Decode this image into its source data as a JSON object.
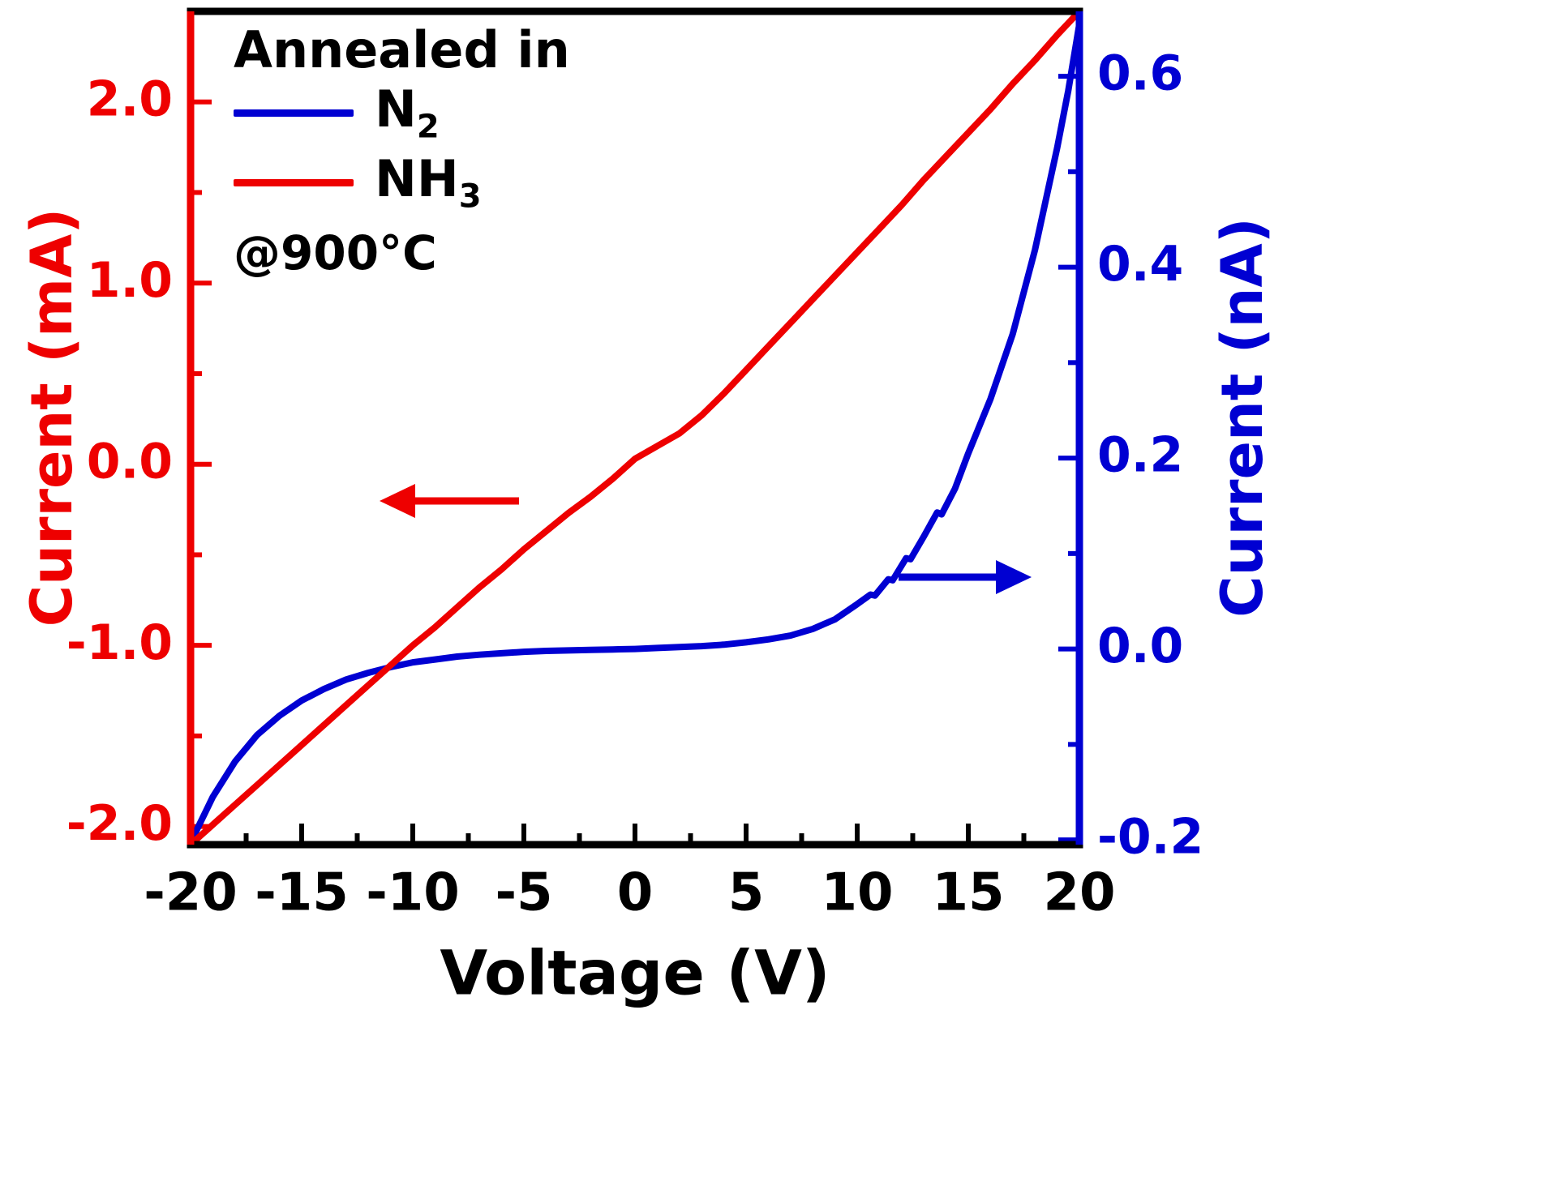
{
  "chart_data": {
    "type": "line",
    "title": "",
    "xlabel": "Voltage (V)",
    "ylabel_left": "Current (mA)",
    "ylabel_right": "Current (nA)",
    "xlim": [
      -20,
      20
    ],
    "ylim_left": [
      -2.1,
      2.5
    ],
    "ylim_right": [
      -0.205,
      0.668
    ],
    "x_tick_values": [
      -20,
      -15,
      -10,
      -5,
      0,
      5,
      10,
      15,
      20
    ],
    "x_tick_labels": [
      "-20",
      "-15",
      "-10",
      "-5",
      "0",
      "5",
      "10",
      "15",
      "20"
    ],
    "y_tick_values_left": [
      2.0,
      1.0,
      0.0,
      -1.0,
      -2.0
    ],
    "y_tick_labels_left": [
      "2.0",
      "1.0",
      "0.0",
      "-1.0",
      "-2.0"
    ],
    "y_tick_values_right": [
      0.6,
      0.4,
      0.2,
      0.0,
      -0.2
    ],
    "y_tick_labels_right": [
      "0.6",
      "0.4",
      "0.2",
      "0.0",
      "-0.2"
    ],
    "x_minor_step": 2.5,
    "y_minor_step_left": 0.5,
    "y_minor_step_right": 0.1,
    "grid": false,
    "legend_position": "top-left-inside",
    "colors": {
      "nh3_red": "#ee0000",
      "n2_blue": "#0000d2",
      "axis_black": "#000000"
    },
    "series": [
      {
        "name": "N2",
        "axis": "right",
        "color_key": "n2_blue",
        "x": [
          -20,
          -19,
          -18,
          -17,
          -16,
          -15,
          -14,
          -13,
          -12,
          -11,
          -10,
          -9,
          -8,
          -7,
          -6,
          -5,
          -4,
          -3,
          -2,
          -1,
          0,
          1,
          2,
          3,
          4,
          5,
          6,
          7,
          8,
          9,
          10,
          10.6,
          10.8,
          11.4,
          11.6,
          12.2,
          12.4,
          13,
          13.6,
          13.8,
          14.4,
          15,
          16,
          17,
          18,
          19,
          19.5,
          20
        ],
        "y": [
          -0.203,
          -0.155,
          -0.118,
          -0.09,
          -0.07,
          -0.054,
          -0.042,
          -0.032,
          -0.025,
          -0.019,
          -0.014,
          -0.011,
          -0.008,
          -0.006,
          -0.0045,
          -0.003,
          -0.002,
          -0.0015,
          -0.001,
          -0.0005,
          0,
          0.001,
          0.002,
          0.003,
          0.0045,
          0.007,
          0.01,
          0.014,
          0.021,
          0.031,
          0.047,
          0.057,
          0.056,
          0.073,
          0.072,
          0.095,
          0.094,
          0.118,
          0.143,
          0.141,
          0.168,
          0.205,
          0.262,
          0.33,
          0.418,
          0.525,
          0.585,
          0.655
        ]
      },
      {
        "name": "NH3",
        "axis": "left",
        "color_key": "nh3_red",
        "x": [
          -20,
          -19,
          -18,
          -17,
          -16,
          -15,
          -14,
          -13,
          -12,
          -11,
          -10,
          -9,
          -8,
          -7,
          -6,
          -5,
          -4,
          -3,
          -2,
          -1,
          0,
          1,
          2,
          3,
          4,
          5,
          6,
          7,
          8,
          9,
          10,
          11,
          12,
          13,
          14,
          15,
          16,
          17,
          18,
          19,
          20
        ],
        "y": [
          -2.1,
          -1.99,
          -1.88,
          -1.77,
          -1.66,
          -1.55,
          -1.44,
          -1.33,
          -1.22,
          -1.11,
          -1.0,
          -0.9,
          -0.79,
          -0.68,
          -0.58,
          -0.47,
          -0.37,
          -0.27,
          -0.18,
          -0.08,
          0.03,
          0.1,
          0.17,
          0.27,
          0.39,
          0.52,
          0.65,
          0.78,
          0.91,
          1.04,
          1.17,
          1.3,
          1.43,
          1.57,
          1.7,
          1.83,
          1.96,
          2.1,
          2.23,
          2.37,
          2.5
        ]
      }
    ],
    "annotations": [
      {
        "name": "left-axis-arrow",
        "meaning": "NH3 curve reads on left axis",
        "direction": "left",
        "color_key": "nh3_red"
      },
      {
        "name": "right-axis-arrow",
        "meaning": "N2 curve reads on right axis",
        "direction": "right",
        "color_key": "n2_blue"
      }
    ]
  },
  "legend": {
    "title": "Annealed in",
    "note": "@900°C",
    "entries": [
      {
        "main": "N",
        "sub": "2",
        "color_key": "n2_blue"
      },
      {
        "main": "NH",
        "sub": "3",
        "color_key": "nh3_red"
      }
    ]
  }
}
